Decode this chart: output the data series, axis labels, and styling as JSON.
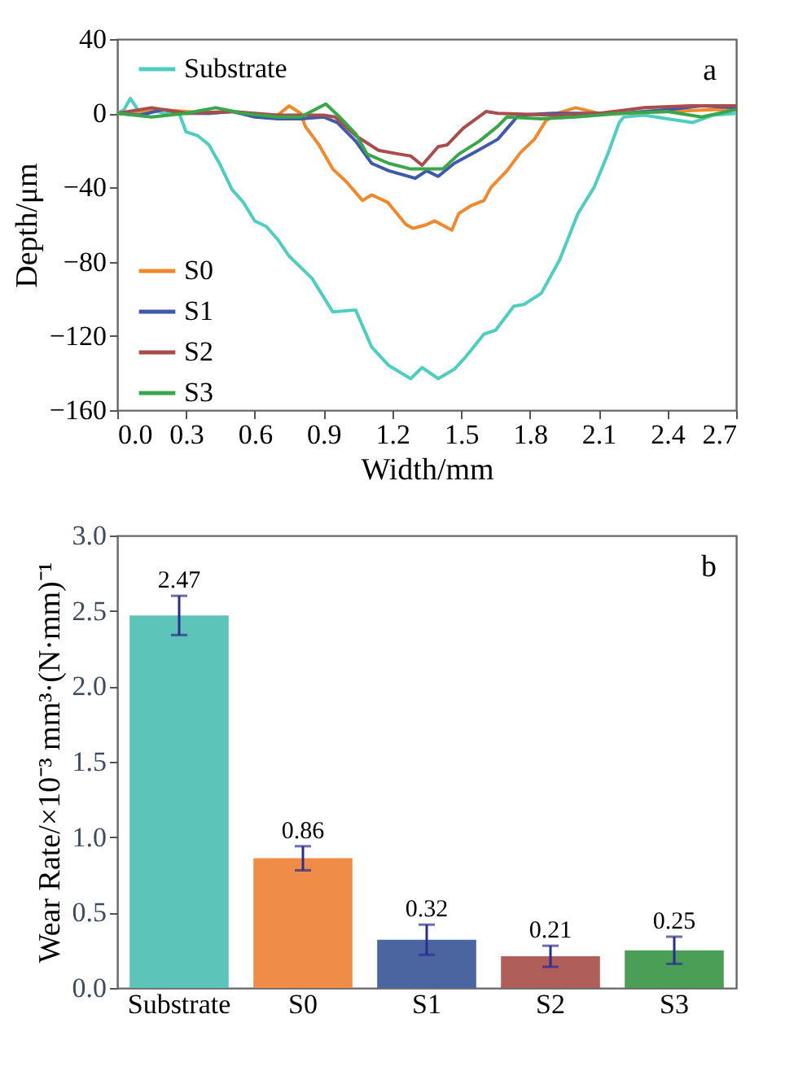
{
  "chart_data": [
    {
      "type": "line",
      "xlabel": "Width/mm",
      "ylabel": "Depth/μm",
      "xlim": [
        0,
        2.7
      ],
      "ylim": [
        -160,
        40
      ],
      "xticks": [
        {
          "value": 0,
          "label": "0.0"
        },
        0.3,
        0.6,
        0.9,
        1.2,
        1.5,
        1.8,
        2.1,
        2.4,
        2.7
      ],
      "yticks": [
        -160,
        -120,
        -80,
        -40,
        0,
        40
      ],
      "legend": "left",
      "annotations": [
        "a"
      ],
      "series": [
        {
          "name": "Substrate",
          "color": "#4ecdc0",
          "x": [
            0,
            0.03,
            0.057,
            0.1,
            0.15,
            0.2,
            0.27,
            0.3,
            0.35,
            0.4,
            0.45,
            0.5,
            0.55,
            0.6,
            0.65,
            0.7,
            0.75,
            0.85,
            0.94,
            1.04,
            1.11,
            1.185,
            1.28,
            1.33,
            1.4,
            1.47,
            1.515,
            1.6,
            1.65,
            1.73,
            1.775,
            1.85,
            1.93,
            2.01,
            2.08,
            2.14,
            2.19,
            2.21,
            2.3,
            2.4,
            2.51,
            2.6,
            2.7
          ],
          "values": [
            0,
            2,
            8,
            0,
            2,
            0,
            0,
            -10,
            -12,
            -17,
            -28,
            -41,
            -48,
            -58,
            -61,
            -68,
            -77,
            -89,
            -107,
            -106,
            -126,
            -136,
            -143,
            -137,
            -143,
            -138,
            -132,
            -119,
            -117,
            -104,
            -103,
            -97,
            -79,
            -54,
            -40,
            -22,
            -5,
            -2,
            -1,
            -3,
            -5,
            -1,
            0
          ]
        },
        {
          "name": "S0",
          "color": "#f0882e",
          "x": [
            0,
            0.1,
            0.2,
            0.3,
            0.4,
            0.5,
            0.6,
            0.7,
            0.75,
            0.8,
            0.82,
            0.88,
            0.94,
            1.0,
            1.07,
            1.11,
            1.18,
            1.26,
            1.29,
            1.35,
            1.385,
            1.46,
            1.49,
            1.54,
            1.6,
            1.63,
            1.7,
            1.76,
            1.82,
            1.87,
            1.92,
            2.0,
            2.1,
            2.2,
            2.4,
            2.6,
            2.7
          ],
          "values": [
            0,
            1,
            2,
            1,
            0,
            1,
            -1,
            -1,
            4,
            0,
            -7,
            -17,
            -30,
            -37,
            -47,
            -44,
            -48,
            -60,
            -62,
            -60,
            -58,
            -63,
            -54,
            -50,
            -47,
            -40,
            -31,
            -21,
            -14,
            -4,
            0,
            3,
            0,
            0,
            1,
            2,
            2
          ]
        },
        {
          "name": "S1",
          "color": "#3f5aa8",
          "x": [
            0,
            0.1,
            0.2,
            0.3,
            0.4,
            0.5,
            0.6,
            0.7,
            0.8,
            0.9,
            0.96,
            1.04,
            1.11,
            1.185,
            1.3,
            1.35,
            1.4,
            1.47,
            1.56,
            1.66,
            1.73,
            1.75,
            1.9,
            2.2,
            2.4,
            2.55,
            2.7
          ],
          "values": [
            0,
            -1,
            2,
            0,
            0,
            1,
            -2,
            -3,
            -3,
            -2,
            -5,
            -15,
            -27,
            -31,
            -35,
            -31,
            -34,
            -27,
            -21,
            -14,
            -4,
            -1,
            0,
            0,
            2,
            4,
            3
          ]
        },
        {
          "name": "S2",
          "color": "#a84c4c",
          "x": [
            0,
            0.15,
            0.3,
            0.5,
            0.7,
            0.9,
            0.95,
            1.04,
            1.14,
            1.23,
            1.28,
            1.33,
            1.4,
            1.44,
            1.51,
            1.61,
            1.66,
            1.9,
            2.1,
            2.3,
            2.5,
            2.7
          ],
          "values": [
            0,
            3,
            0,
            1,
            -1,
            -1,
            -2,
            -12,
            -20,
            -22,
            -23,
            -28,
            -18,
            -17,
            -8,
            1,
            0,
            -1,
            0,
            3,
            4,
            4
          ]
        },
        {
          "name": "S3",
          "color": "#3aa64a",
          "x": [
            0,
            0.15,
            0.3,
            0.43,
            0.55,
            0.7,
            0.8,
            0.91,
            0.97,
            1.04,
            1.09,
            1.185,
            1.28,
            1.35,
            1.42,
            1.49,
            1.58,
            1.66,
            1.7,
            1.85,
            2.0,
            2.2,
            2.4,
            2.55,
            2.7
          ],
          "values": [
            0,
            -2,
            0,
            3,
            0,
            -2,
            -2,
            5,
            -2,
            -11,
            -22,
            -27,
            -30,
            -30,
            -30,
            -22,
            -15,
            -7,
            -2,
            -3,
            -2,
            0,
            1,
            -2,
            2
          ]
        }
      ]
    },
    {
      "type": "bar",
      "ylabel": "Wear Rate/×10⁻³ mm³·(N·mm)⁻¹",
      "categories": [
        "Substrate",
        "S0",
        "S1",
        "S2",
        "S3"
      ],
      "values": [
        2.47,
        0.86,
        0.32,
        0.21,
        0.25
      ],
      "colors": [
        "#5cc4b8",
        "#ee8c48",
        "#4b65a0",
        "#b05e5a",
        "#4a9e55"
      ],
      "errors": [
        0.13,
        0.08,
        0.1,
        0.07,
        0.09
      ],
      "data_labels": true,
      "ylim": [
        0,
        3
      ],
      "yticks": [
        {
          "value": 0,
          "label": "0.0"
        },
        0.5,
        {
          "value": 1,
          "label": "1.0"
        },
        1.5,
        {
          "value": 2,
          "label": "2.0"
        },
        2.5,
        {
          "value": 3,
          "label": "3.0"
        }
      ],
      "annotations": [
        "b"
      ]
    }
  ]
}
